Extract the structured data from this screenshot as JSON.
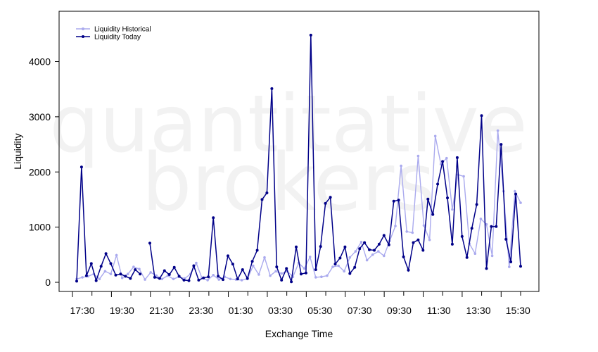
{
  "watermark": {
    "line1": "quantitative",
    "line2": "brokers"
  },
  "chart_data": {
    "type": "line",
    "xlabel": "Exchange Time",
    "ylabel": "Liquidity",
    "ylim": [
      -150,
      4750
    ],
    "y_ticks": [
      0,
      1000,
      2000,
      3000,
      4000
    ],
    "x_tick_labels": [
      "17:30",
      "19:30",
      "21:30",
      "23:30",
      "01:30",
      "03:30",
      "05:30",
      "07:30",
      "09:30",
      "11:30",
      "13:30",
      "15:30"
    ],
    "x_minor_ticks": 24,
    "x_label": "Exchange Time",
    "legend": {
      "placement": "top-left"
    },
    "series": [
      {
        "name": "Liquidity Historical",
        "color": "#aaaaee",
        "values": [
          60,
          90,
          110,
          150,
          60,
          200,
          150,
          490,
          80,
          150,
          280,
          240,
          50,
          180,
          120,
          60,
          120,
          60,
          100,
          70,
          150,
          350,
          80,
          40,
          130,
          50,
          100,
          60,
          50,
          40,
          60,
          300,
          140,
          450,
          120,
          200,
          160,
          200,
          100,
          350,
          250,
          460,
          90,
          100,
          120,
          280,
          300,
          200,
          450,
          560,
          730,
          400,
          500,
          560,
          480,
          750,
          1020,
          2110,
          920,
          900,
          2290,
          1030,
          770,
          2650,
          2140,
          2250,
          1320,
          1950,
          1920,
          700,
          520,
          1150,
          1050,
          480,
          2750,
          1650,
          280,
          1650,
          1440
        ]
      },
      {
        "name": "Liquidity Today",
        "color": "#000088",
        "values": [
          20,
          2090,
          120,
          340,
          30,
          290,
          520,
          340,
          130,
          150,
          110,
          70,
          230,
          150,
          null,
          710,
          90,
          70,
          210,
          140,
          270,
          110,
          40,
          30,
          300,
          40,
          80,
          100,
          1170,
          110,
          50,
          480,
          330,
          60,
          230,
          70,
          380,
          580,
          1500,
          1620,
          3510,
          280,
          40,
          250,
          10,
          640,
          150,
          170,
          4480,
          230,
          650,
          1430,
          1540,
          330,
          440,
          640,
          160,
          270,
          610,
          720,
          590,
          580,
          690,
          850,
          680,
          1470,
          1490,
          460,
          220,
          720,
          770,
          580,
          1510,
          1230,
          1780,
          2190,
          1530,
          690,
          2260,
          830,
          450,
          980,
          1410,
          3020,
          250,
          1010,
          1010,
          2500,
          780,
          370,
          1600,
          290
        ]
      }
    ]
  }
}
